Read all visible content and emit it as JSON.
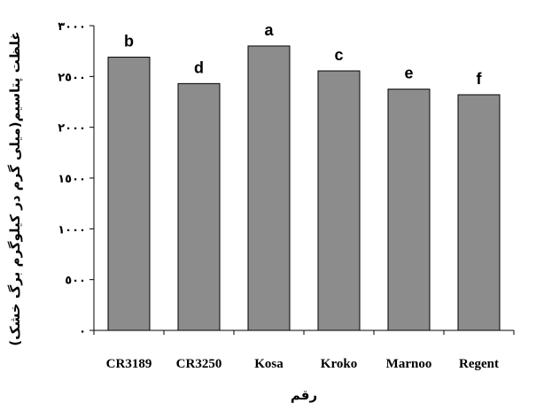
{
  "chart_data": {
    "type": "bar",
    "categories": [
      "CR3189",
      "CR3250",
      "Kosa",
      "Kroko",
      "Marnoo",
      "Regent"
    ],
    "values": [
      2690,
      2430,
      2800,
      2555,
      2375,
      2320
    ],
    "significance_letters": [
      "b",
      "d",
      "a",
      "c",
      "e",
      "f"
    ],
    "ylim": [
      0,
      3000
    ],
    "yticks": [
      0,
      500,
      1000,
      1500,
      2000,
      2500,
      3000
    ],
    "ytick_labels": [
      "٠",
      "٥٠٠",
      "١٠٠٠",
      "١٥٠٠",
      "٢٠٠٠",
      "٢٥٠٠",
      "٣٠٠٠"
    ],
    "xlabel": "رقم",
    "ylabel": "غلظت پتاسیم(میلی گرم در کیلوگرم برگ خشک)",
    "bar_color": "#8c8c8c",
    "grid": false,
    "legend": "none"
  }
}
